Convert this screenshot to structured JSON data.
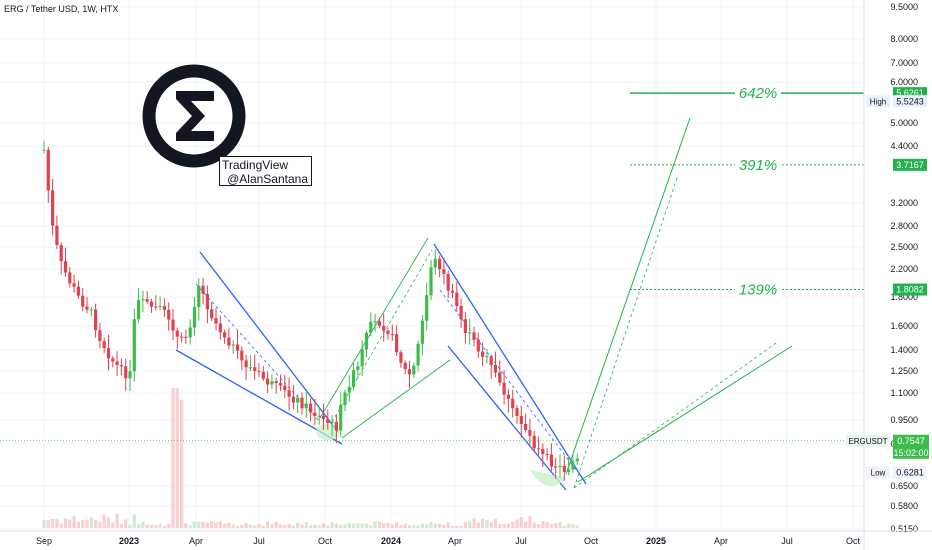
{
  "header": {
    "title": "ERG / Tether USD, 1W, HTX"
  },
  "watermark": {
    "line1": "TradingView",
    "line2": "@AlanSantana"
  },
  "logo": {
    "icon": "sigma-icon",
    "color": "#131722"
  },
  "colors": {
    "up": "#26a69a",
    "upFill": "#3cbd4a",
    "down": "#e0434f",
    "channel": "#2962ff",
    "target": "#22b14c",
    "grid": "#f0f3fa"
  },
  "chart_data": {
    "type": "candlestick",
    "symbol": "ERGUSDT",
    "timeframe": "1W",
    "exchange": "HTX",
    "x_ticks": [
      "Sep",
      "2023",
      "Apr",
      "Jul",
      "Oct",
      "2024",
      "Apr",
      "Jul",
      "Oct",
      "2025",
      "Apr",
      "Jul",
      "Oct"
    ],
    "y_ticks": [
      "9.5000",
      "8.0000",
      "7.0000",
      "6.0000",
      "5.0000",
      "4.4000",
      "3.2000",
      "2.8000",
      "2.5000",
      "2.2000",
      "1.8000",
      "1.6000",
      "1.4000",
      "1.2500",
      "1.1000",
      "0.9500",
      "0.8300",
      "0.6500",
      "0.5800",
      "0.5150"
    ],
    "y_scale": "log",
    "targets": [
      {
        "label": "642%",
        "price": "5.6261",
        "style": "solid"
      },
      {
        "label": "391%",
        "price": "3.7167",
        "style": "dotted"
      },
      {
        "label": "139%",
        "price": "1.8082",
        "style": "dotted"
      }
    ],
    "current": {
      "label": "ERGUSDT",
      "price": "0.7547",
      "countdown": "15:02:00"
    },
    "high": {
      "label": "High",
      "price": "5.5243"
    },
    "low": {
      "label": "Low",
      "price": "0.6281"
    }
  }
}
